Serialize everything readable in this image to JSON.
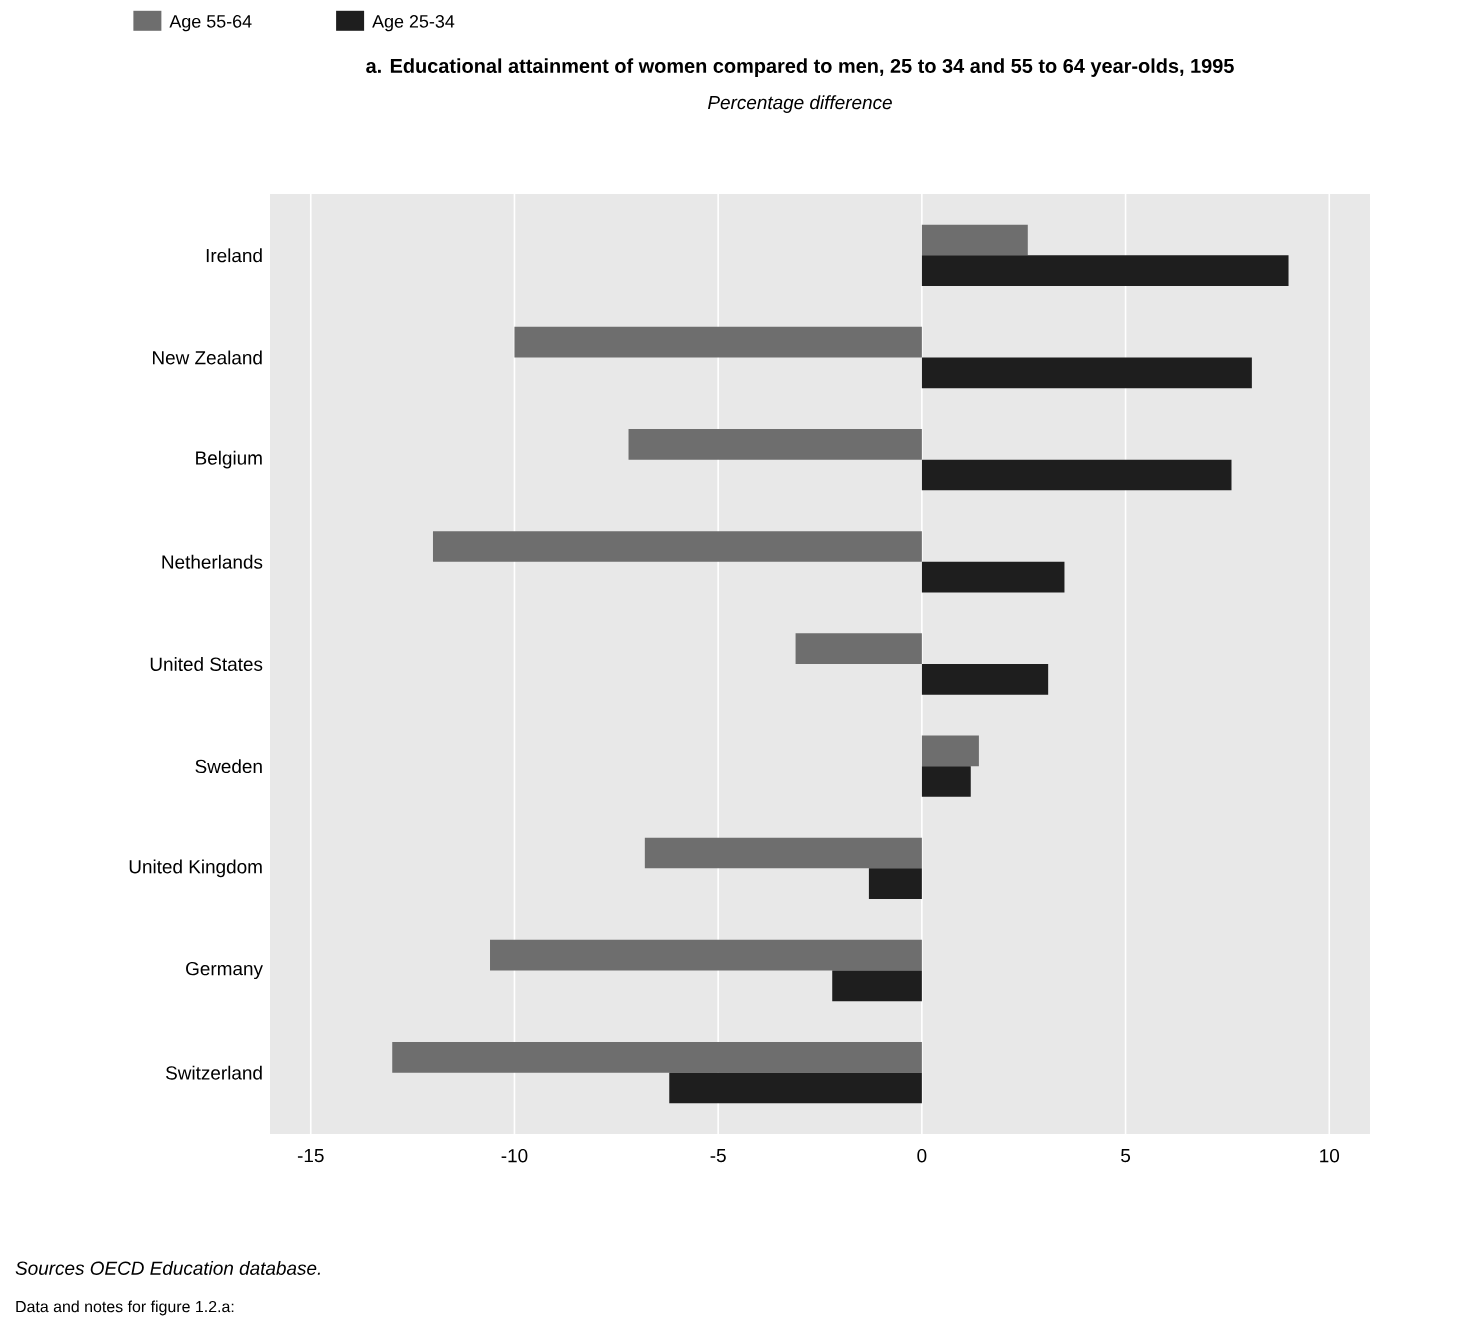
{
  "chart_data": {
    "type": "bar",
    "orientation": "horizontal",
    "title": "a.  Educational attainment of women compared to men, 25 to 34 and 55 to 64 year-olds, 1995",
    "subtitle": "Percentage difference",
    "categories": [
      "Ireland",
      "New Zealand",
      "Belgium",
      "Netherlands",
      "United States",
      "Sweden",
      "United Kingdom",
      "Germany",
      "Switzerland"
    ],
    "series": [
      {
        "name": "Age 55-64",
        "color": "#6e6e6e",
        "values": [
          2.6,
          -10.0,
          -7.2,
          -12.0,
          -3.1,
          1.4,
          -6.8,
          -10.6,
          -13.0
        ]
      },
      {
        "name": "Age 25-34",
        "color": "#1e1e1e",
        "values": [
          9.0,
          8.1,
          7.6,
          3.5,
          3.1,
          1.2,
          -1.3,
          -2.2,
          -6.2
        ]
      }
    ],
    "xlim": [
      -16,
      11
    ],
    "xticks": [
      -15,
      -10,
      -5,
      0,
      5,
      10
    ],
    "grid": "x",
    "legend": "top left",
    "annotations": [
      "Sources OECD Education database.",
      "Data and notes for figure 1.2.a:"
    ]
  }
}
